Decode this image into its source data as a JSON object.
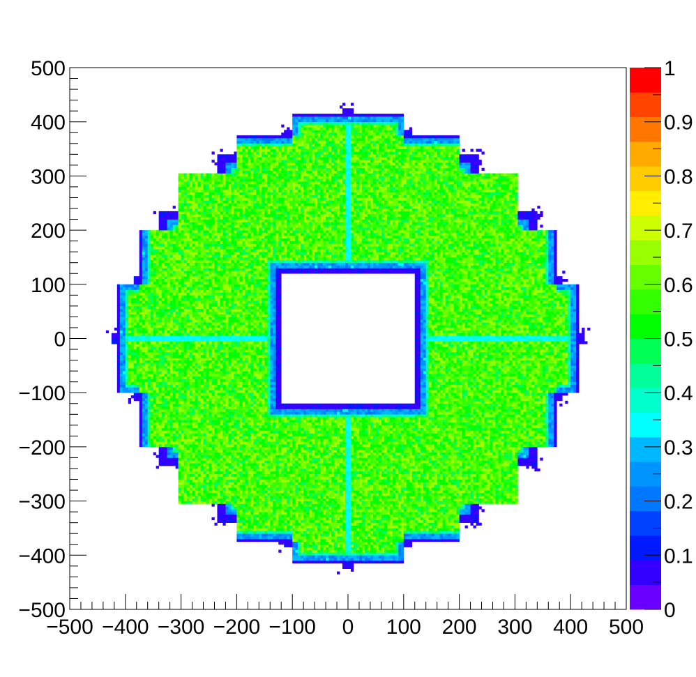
{
  "chart_data": {
    "type": "heatmap",
    "title": "",
    "xlabel": "",
    "ylabel": "",
    "xlim": [
      -500,
      500
    ],
    "ylim": [
      -500,
      500
    ],
    "zlim": [
      0,
      1
    ],
    "x_ticks": [
      {
        "value": -500,
        "label": "−500"
      },
      {
        "value": -400,
        "label": "−400"
      },
      {
        "value": -300,
        "label": "−300"
      },
      {
        "value": -200,
        "label": "−200"
      },
      {
        "value": -100,
        "label": "−100"
      },
      {
        "value": 0,
        "label": "0"
      },
      {
        "value": 100,
        "label": "100"
      },
      {
        "value": 200,
        "label": "200"
      },
      {
        "value": 300,
        "label": "300"
      },
      {
        "value": 400,
        "label": "400"
      },
      {
        "value": 500,
        "label": "500"
      }
    ],
    "y_ticks": [
      {
        "value": -500,
        "label": "−500"
      },
      {
        "value": -400,
        "label": "−400"
      },
      {
        "value": -300,
        "label": "−300"
      },
      {
        "value": -200,
        "label": "−200"
      },
      {
        "value": -100,
        "label": "−100"
      },
      {
        "value": 0,
        "label": "0"
      },
      {
        "value": 100,
        "label": "100"
      },
      {
        "value": 200,
        "label": "200"
      },
      {
        "value": 300,
        "label": "300"
      },
      {
        "value": 400,
        "label": "400"
      },
      {
        "value": 500,
        "label": "500"
      }
    ],
    "z_ticks": [
      {
        "value": 0,
        "label": "0"
      },
      {
        "value": 0.1,
        "label": "0.1"
      },
      {
        "value": 0.2,
        "label": "0.2"
      },
      {
        "value": 0.3,
        "label": "0.3"
      },
      {
        "value": 0.4,
        "label": "0.4"
      },
      {
        "value": 0.5,
        "label": "0.5"
      },
      {
        "value": 0.6,
        "label": "0.6"
      },
      {
        "value": 0.7,
        "label": "0.7"
      },
      {
        "value": 0.8,
        "label": "0.8"
      },
      {
        "value": 0.9,
        "label": "0.9"
      },
      {
        "value": 1,
        "label": "1"
      }
    ],
    "palette": [
      "#6a00ff",
      "#3300ff",
      "#0019ff",
      "#0042ff",
      "#0077ff",
      "#0094ff",
      "#00b8ff",
      "#00ffff",
      "#00ffcc",
      "#00ff99",
      "#00ff55",
      "#00ff00",
      "#33ff00",
      "#66ff00",
      "#99ff00",
      "#ccff00",
      "#ffee00",
      "#ffcc00",
      "#ffaa00",
      "#ff7700",
      "#ff4400",
      "#ff0000"
    ],
    "distribution": {
      "shape": "stepped annulus",
      "inner_square_half_width": 125,
      "outer_steps": [
        [
          415,
          100
        ],
        [
          375,
          200
        ],
        [
          330,
          305
        ],
        [
          225,
          375
        ],
        [
          105,
          415
        ]
      ],
      "plateau_value": 0.6,
      "edge_value": 0.05,
      "seam_value": 0.33,
      "seams": [
        0,
        0
      ]
    },
    "grid": false,
    "colorbar": "right"
  }
}
